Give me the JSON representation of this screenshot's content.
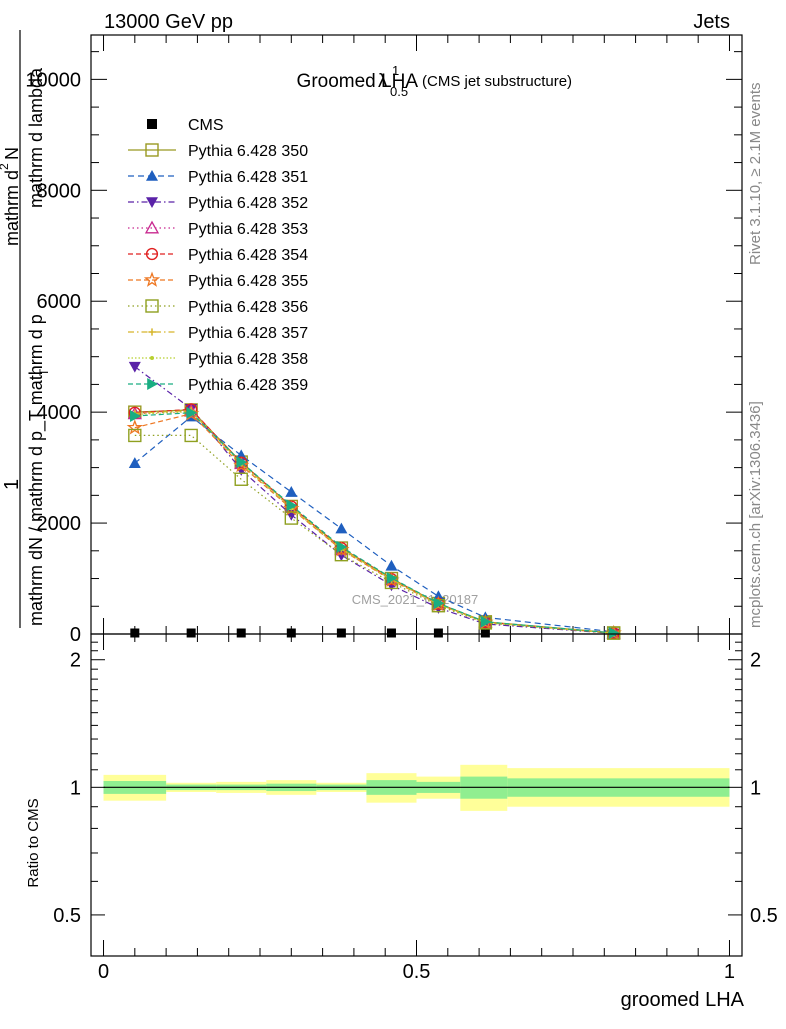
{
  "header": {
    "energy_label": "13000 GeV pp",
    "category_label": "Jets"
  },
  "side_texts": {
    "rivet": "Rivet 3.1.10, ≥ 2.1M events",
    "mcplots": "mcplots.cern.ch [arXiv:1306.3436]"
  },
  "watermark": "CMS_2021_I1920187",
  "chart_data": [
    {
      "type": "line",
      "title": "Groomed LHA",
      "title_symbol": "λ",
      "title_sup": "1",
      "title_sub": "0.5",
      "title_note": "(CMS jet substructure)",
      "ylabel_parts": [
        "1",
        "mathrm dN / mathrm d p_T mathrm d p",
        "T",
        "mathrm d lambda",
        "mathrm d",
        "2",
        "N"
      ],
      "xlabel": "groomed LHA",
      "xlim": [
        -0.02,
        1.02
      ],
      "ylim": [
        0,
        10800
      ],
      "y_ticks": [
        0,
        2000,
        4000,
        6000,
        8000,
        10000
      ],
      "x": [
        0.05,
        0.14,
        0.22,
        0.3,
        0.38,
        0.46,
        0.535,
        0.61,
        0.815
      ],
      "legend_position": "top-left",
      "series": [
        {
          "name": "CMS",
          "color": "#000000",
          "marker": "square-filled",
          "dash": "none",
          "values": [
            0,
            0,
            0,
            0,
            0,
            0,
            0,
            0,
            0
          ]
        },
        {
          "name": "Pythia 6.428 350",
          "color": "#999922",
          "marker": "square-open",
          "dash": "solid",
          "values": [
            4000,
            4040,
            3100,
            2300,
            1550,
            1000,
            550,
            220,
            20
          ]
        },
        {
          "name": "Pythia 6.428 351",
          "color": "#1f5fbf",
          "marker": "triangle-up-filled",
          "dash": "6,4",
          "values": [
            3080,
            3920,
            3220,
            2560,
            1900,
            1230,
            680,
            300,
            40
          ]
        },
        {
          "name": "Pythia 6.428 352",
          "color": "#5a22a8",
          "marker": "triangle-down-filled",
          "dash": "6,3,1.5,3",
          "values": [
            4820,
            4060,
            2960,
            2150,
            1420,
            880,
            470,
            180,
            10
          ]
        },
        {
          "name": "Pythia 6.428 353",
          "color": "#c8288f",
          "marker": "triangle-up-open",
          "dash": "1.5,3",
          "values": [
            3970,
            4020,
            3070,
            2280,
            1520,
            980,
            540,
            210,
            15
          ]
        },
        {
          "name": "Pythia 6.428 354",
          "color": "#e02020",
          "marker": "circle-open",
          "dash": "5,3",
          "values": [
            3990,
            4050,
            3090,
            2300,
            1550,
            990,
            545,
            215,
            15
          ]
        },
        {
          "name": "Pythia 6.428 355",
          "color": "#ee7722",
          "marker": "star-open",
          "dash": "5,3",
          "values": [
            3720,
            3970,
            3040,
            2260,
            1520,
            970,
            535,
            210,
            15
          ]
        },
        {
          "name": "Pythia 6.428 356",
          "color": "#8fa020",
          "marker": "square-open",
          "dash": "1.5,3",
          "values": [
            3580,
            3580,
            2790,
            2090,
            1430,
            930,
            510,
            200,
            15
          ]
        },
        {
          "name": "Pythia 6.428 357",
          "color": "#d6b52a",
          "marker": "cross-small",
          "dash": "6,3,1.5,3",
          "values": [
            3980,
            4030,
            3080,
            2290,
            1540,
            985,
            540,
            212,
            15
          ]
        },
        {
          "name": "Pythia 6.428 358",
          "color": "#b8d030",
          "marker": "dot-small",
          "dash": "1.5,2",
          "values": [
            3960,
            4010,
            3060,
            2270,
            1530,
            980,
            538,
            210,
            15
          ]
        },
        {
          "name": "Pythia 6.428 359",
          "color": "#1aad82",
          "marker": "triangle-right-filled",
          "dash": "5,3",
          "values": [
            3930,
            3990,
            3100,
            2320,
            1570,
            1010,
            555,
            220,
            18
          ]
        }
      ]
    },
    {
      "type": "area",
      "ylabel": "Ratio to CMS",
      "xlabel": "groomed LHA",
      "xlim": [
        -0.02,
        1.02
      ],
      "ylim": [
        0.4,
        2.3
      ],
      "y_scale": "log",
      "y_ticks": [
        0.5,
        1,
        2
      ],
      "x_ticks": [
        0,
        0.5,
        1
      ],
      "reference_line": 1,
      "bins": [
        {
          "lo": 0.0,
          "hi": 0.1,
          "inner": [
            0.965,
            1.035
          ],
          "outer": [
            0.93,
            1.07
          ]
        },
        {
          "lo": 0.1,
          "hi": 0.18,
          "inner": [
            0.985,
            1.015
          ],
          "outer": [
            0.975,
            1.025
          ]
        },
        {
          "lo": 0.18,
          "hi": 0.26,
          "inner": [
            0.985,
            1.015
          ],
          "outer": [
            0.97,
            1.03
          ]
        },
        {
          "lo": 0.26,
          "hi": 0.34,
          "inner": [
            0.98,
            1.02
          ],
          "outer": [
            0.96,
            1.04
          ]
        },
        {
          "lo": 0.34,
          "hi": 0.42,
          "inner": [
            0.985,
            1.015
          ],
          "outer": [
            0.975,
            1.025
          ]
        },
        {
          "lo": 0.42,
          "hi": 0.5,
          "inner": [
            0.96,
            1.04
          ],
          "outer": [
            0.92,
            1.08
          ]
        },
        {
          "lo": 0.5,
          "hi": 0.57,
          "inner": [
            0.97,
            1.03
          ],
          "outer": [
            0.94,
            1.06
          ]
        },
        {
          "lo": 0.57,
          "hi": 0.645,
          "inner": [
            0.94,
            1.06
          ],
          "outer": [
            0.88,
            1.13
          ]
        },
        {
          "lo": 0.645,
          "hi": 1.0,
          "inner": [
            0.95,
            1.05
          ],
          "outer": [
            0.9,
            1.11
          ]
        }
      ],
      "band_colors": {
        "inner": "#90ee90",
        "outer": "#ffff99"
      }
    }
  ]
}
